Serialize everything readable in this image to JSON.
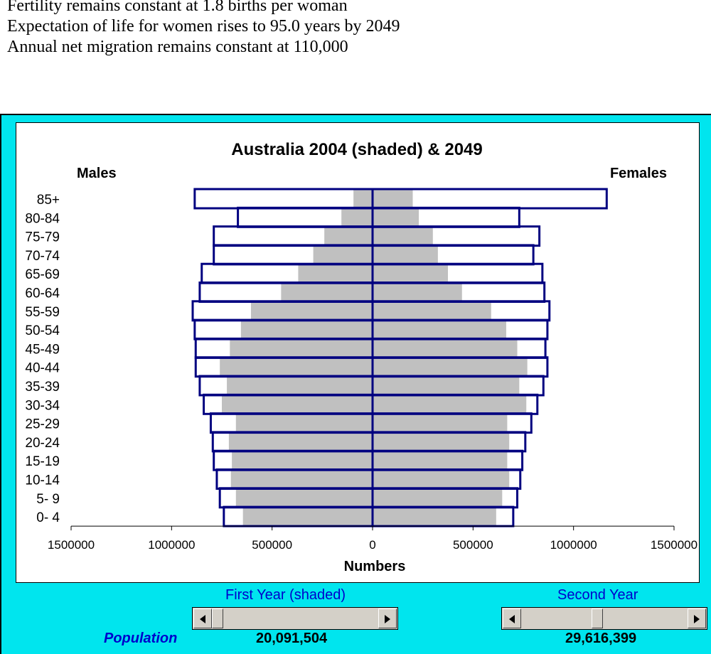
{
  "assumptions": [
    "Fertility remains constant at 1.8 births per woman",
    "Expectation of life for women rises to 95.0 years by 2049",
    "Annual net migration remains constant at 110,000"
  ],
  "chart_data": {
    "type": "bar",
    "orientation": "horizontal-population-pyramid",
    "title": "Australia 2004 (shaded) & 2049",
    "left_label": "Males",
    "right_label": "Females",
    "xlabel": "Numbers",
    "xlim": [
      -1500000,
      1500000
    ],
    "x_tick_values": [
      -1500000,
      -1000000,
      -500000,
      0,
      500000,
      1000000,
      1500000
    ],
    "x_tick_labels": [
      "1500000",
      "1000000",
      "500000",
      "0",
      "500000",
      "1000000",
      "1500000"
    ],
    "categories": [
      "85+",
      "80-84",
      "75-79",
      "70-74",
      "65-69",
      "60-64",
      "55-59",
      "50-54",
      "45-49",
      "40-44",
      "35-39",
      "30-34",
      "25-29",
      "20-24",
      "15-19",
      "10-14",
      "5- 9",
      "0- 4"
    ],
    "series": [
      {
        "name": "2004 (shaded)",
        "colors": {
          "fill": "#c0c0c0",
          "stroke": "none"
        },
        "males": [
          95000,
          155000,
          240000,
          295000,
          370000,
          455000,
          605000,
          655000,
          710000,
          760000,
          725000,
          750000,
          680000,
          715000,
          700000,
          705000,
          680000,
          645000
        ],
        "females": [
          200000,
          230000,
          300000,
          325000,
          375000,
          445000,
          590000,
          665000,
          720000,
          770000,
          730000,
          765000,
          670000,
          680000,
          670000,
          680000,
          645000,
          615000
        ]
      },
      {
        "name": "2049",
        "colors": {
          "fill": "none",
          "stroke": "#000080"
        },
        "males": [
          885000,
          670000,
          790000,
          790000,
          850000,
          860000,
          895000,
          885000,
          880000,
          880000,
          860000,
          840000,
          805000,
          795000,
          790000,
          775000,
          760000,
          740000
        ],
        "females": [
          1165000,
          730000,
          830000,
          800000,
          845000,
          855000,
          880000,
          870000,
          860000,
          870000,
          850000,
          820000,
          790000,
          760000,
          745000,
          735000,
          720000,
          700000
        ]
      }
    ]
  },
  "controls": {
    "first_year_label": "First Year (shaded)",
    "second_year_label": "Second Year",
    "first_slider_position": 0.0,
    "second_slider_position": 0.45
  },
  "population": {
    "label": "Population",
    "first_value": "20,091,504",
    "second_value": "29,616,399"
  },
  "colors": {
    "panel": "#00e5ee",
    "accent_text": "#0000cc",
    "outline": "#000080",
    "shaded": "#c0c0c0"
  }
}
